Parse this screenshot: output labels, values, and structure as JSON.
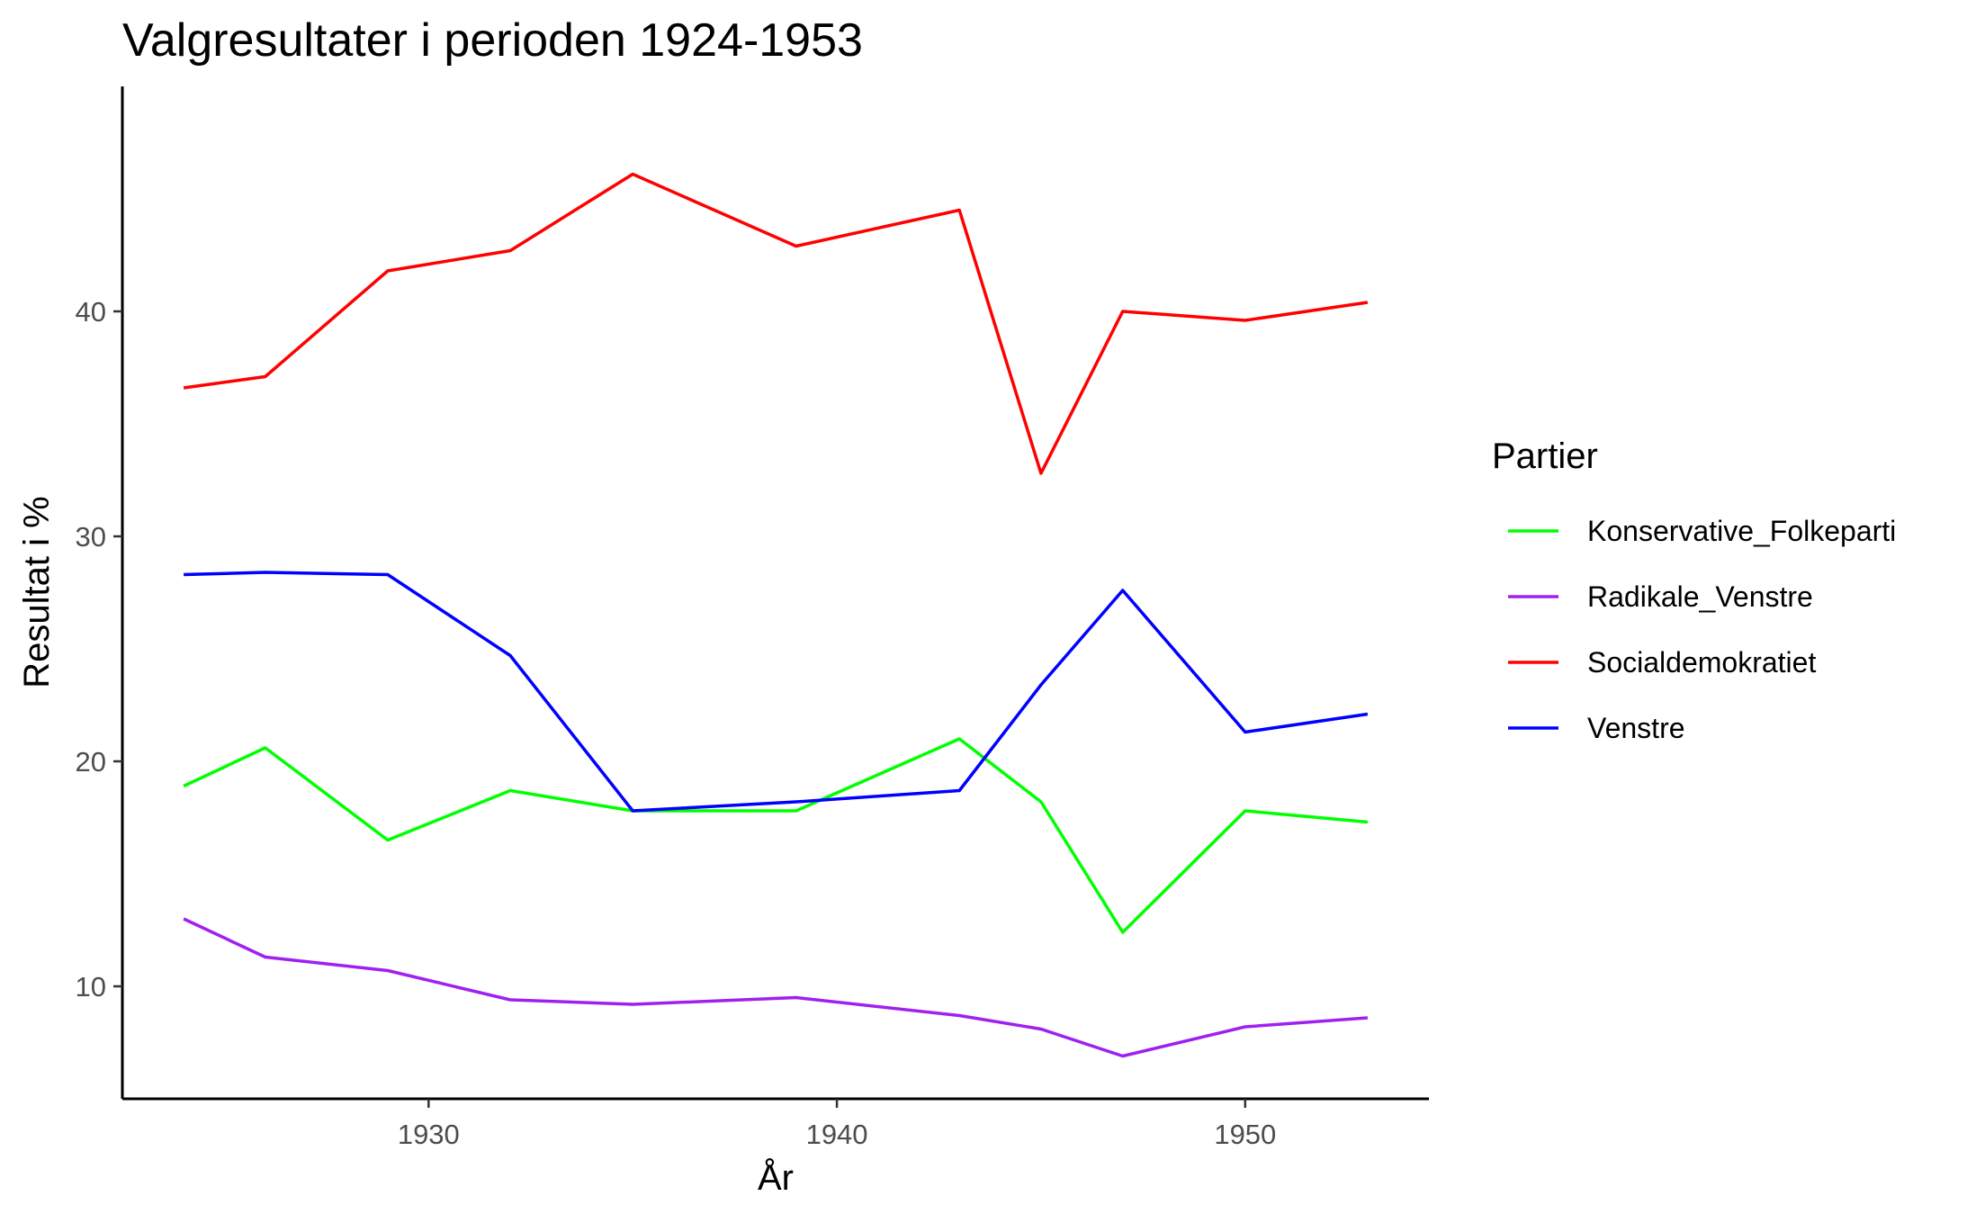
{
  "chart_data": {
    "type": "line",
    "title": "Valgresultater i perioden 1924-1953",
    "xlabel": "År",
    "ylabel": "Resultat i %",
    "xlim": [
      1922.5,
      1954.5
    ],
    "ylim": [
      5,
      50
    ],
    "x_ticks": [
      1930,
      1940,
      1950
    ],
    "y_ticks": [
      10,
      20,
      30,
      40
    ],
    "grid": false,
    "legend": {
      "title": "Partier",
      "position": "right"
    },
    "x": [
      1924,
      1926,
      1929,
      1932,
      1935,
      1939,
      1943,
      1945,
      1947,
      1950,
      1953
    ],
    "series": [
      {
        "name": "Konservative_Folkeparti",
        "color": "#00ff00",
        "values": [
          18.9,
          20.6,
          16.5,
          18.7,
          17.8,
          17.8,
          21.0,
          18.2,
          12.4,
          17.8,
          17.3
        ]
      },
      {
        "name": "Radikale_Venstre",
        "color": "#a020f0",
        "values": [
          13.0,
          11.3,
          10.7,
          9.4,
          9.2,
          9.5,
          8.7,
          8.1,
          6.9,
          8.2,
          8.6
        ]
      },
      {
        "name": "Socialdemokratiet",
        "color": "#ff0000",
        "values": [
          36.6,
          37.1,
          41.8,
          42.7,
          46.1,
          42.9,
          44.5,
          32.8,
          40.0,
          39.6,
          40.4
        ]
      },
      {
        "name": "Venstre",
        "color": "#0000ff",
        "values": [
          28.3,
          28.4,
          28.3,
          24.7,
          17.8,
          18.2,
          18.7,
          23.4,
          27.6,
          21.3,
          22.1
        ]
      }
    ]
  }
}
